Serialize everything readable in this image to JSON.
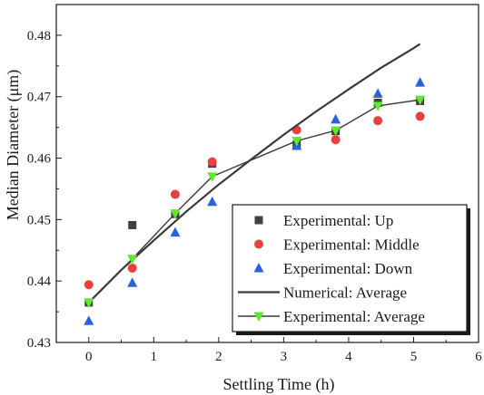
{
  "chart_data": {
    "type": "scatter",
    "xlabel": "Settling Time (h)",
    "ylabel": "Median Diameter (μm)",
    "xlim": [
      -0.5,
      6
    ],
    "ylim": [
      0.43,
      0.485
    ],
    "xticks": [
      0,
      1,
      2,
      3,
      4,
      5,
      6
    ],
    "yticks": [
      0.43,
      0.44,
      0.45,
      0.46,
      0.47,
      0.48
    ],
    "xtick_labels": [
      "0",
      "1",
      "2",
      "3",
      "4",
      "5",
      "6"
    ],
    "ytick_labels": [
      "0.43",
      "0.44",
      "0.45",
      "0.46",
      "0.47",
      "0.48"
    ],
    "grid": false,
    "legend_position": "bottom-right",
    "series": [
      {
        "name": "Experimental: Up",
        "kind": "scatter",
        "marker": "square",
        "color": "#404040",
        "x": [
          0,
          0.67,
          1.33,
          1.9,
          3.2,
          3.8,
          4.45,
          5.1
        ],
        "y": [
          0.4365,
          0.4491,
          0.4509,
          0.4591,
          0.4622,
          0.4644,
          0.469,
          0.4693
        ]
      },
      {
        "name": "Experimental: Middle",
        "kind": "scatter",
        "marker": "circle",
        "color": "#e84040",
        "x": [
          0,
          0.67,
          1.33,
          1.9,
          3.2,
          3.8,
          4.45,
          5.1
        ],
        "y": [
          0.4394,
          0.4421,
          0.4541,
          0.4594,
          0.4646,
          0.463,
          0.4661,
          0.4668
        ]
      },
      {
        "name": "Experimental: Down",
        "kind": "scatter",
        "marker": "triangle-up",
        "color": "#2a62d8",
        "x": [
          0,
          0.67,
          1.33,
          1.9,
          3.2,
          3.8,
          4.45,
          5.1
        ],
        "y": [
          0.4335,
          0.4397,
          0.4479,
          0.4529,
          0.462,
          0.4663,
          0.4705,
          0.4723
        ]
      },
      {
        "name": "Numerical: Average",
        "kind": "line",
        "marker": "none",
        "color": "#3a3a3a",
        "x": [
          0,
          0.5,
          1,
          1.5,
          2,
          2.5,
          3,
          3.5,
          4,
          4.5,
          5,
          5.1
        ],
        "y": [
          0.4365,
          0.4418,
          0.4466,
          0.4513,
          0.4557,
          0.4598,
          0.4638,
          0.4676,
          0.4712,
          0.4747,
          0.4779,
          0.4786
        ]
      },
      {
        "name": "Experimental: Average",
        "kind": "line",
        "marker": "triangle-down",
        "color": "#5fe82e",
        "x": [
          0,
          0.67,
          1.33,
          1.9,
          3.2,
          3.8,
          4.45,
          5.1
        ],
        "y": [
          0.4365,
          0.4436,
          0.451,
          0.457,
          0.4628,
          0.4645,
          0.4685,
          0.4695
        ]
      }
    ]
  }
}
